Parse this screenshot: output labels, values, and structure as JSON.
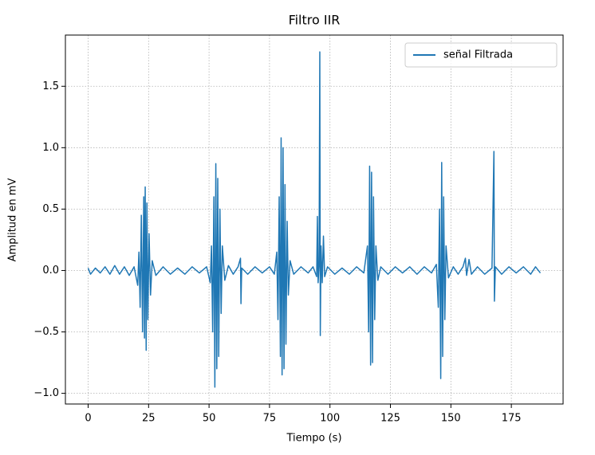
{
  "chart_data": {
    "type": "line",
    "title": "Filtro IIR",
    "xlabel": "Tiempo (s)",
    "ylabel": "Amplitud en mV",
    "xlim": [
      -9.4,
      196.4
    ],
    "ylim": [
      -1.087,
      1.917
    ],
    "xticks": [
      0,
      25,
      50,
      75,
      100,
      125,
      150,
      175
    ],
    "yticks": [
      {
        "value": -1.0,
        "label": "−1.0"
      },
      {
        "value": -0.5,
        "label": "−0.5"
      },
      {
        "value": 0.0,
        "label": "0.0"
      },
      0.5,
      {
        "value": 1.0,
        "label": "1.0"
      },
      1.5
    ],
    "grid": true,
    "legend": "upper right",
    "series": [
      {
        "name": "señal Filtrada",
        "color": "#1f77b4",
        "x": [
          0,
          1,
          3,
          5,
          7,
          9,
          11,
          13,
          15,
          17,
          19,
          20.5,
          21,
          21.5,
          22,
          22.5,
          23,
          23.3,
          23.6,
          24,
          24.3,
          24.7,
          25.2,
          25.8,
          26.5,
          28,
          31,
          34,
          37,
          40,
          43,
          46,
          49,
          50.5,
          51,
          51.5,
          52,
          52.4,
          52.8,
          53.2,
          53.6,
          54,
          54.5,
          55,
          55.5,
          56.5,
          58,
          60,
          62,
          63,
          63.2,
          63.5,
          66,
          69,
          72,
          75,
          77,
          78,
          78.5,
          79,
          79.5,
          79.8,
          80.2,
          80.6,
          81,
          81.4,
          81.8,
          82.3,
          82.8,
          83.5,
          85,
          88,
          91,
          93,
          94.5,
          94.8,
          95.1,
          95.5,
          95.8,
          96,
          96.3,
          96.8,
          97.3,
          97.8,
          99,
          102,
          105,
          108,
          111,
          114,
          115.5,
          116,
          116.4,
          116.8,
          117.2,
          117.6,
          118,
          118.5,
          119,
          119.8,
          121,
          124,
          127,
          130,
          133,
          136,
          139,
          142,
          144,
          144.8,
          145.3,
          145.8,
          146.2,
          146.6,
          147,
          147.5,
          148,
          149,
          151,
          153,
          155,
          156,
          156.5,
          157.5,
          158.5,
          161,
          164,
          167,
          167.8,
          168,
          168.4,
          171,
          174,
          177,
          180,
          183,
          185,
          187
        ],
        "values": [
          0.02,
          -0.03,
          0.02,
          -0.02,
          0.03,
          -0.03,
          0.04,
          -0.03,
          0.03,
          -0.04,
          0.03,
          -0.12,
          0.15,
          -0.3,
          0.45,
          -0.5,
          0.6,
          -0.55,
          0.68,
          -0.65,
          0.55,
          -0.4,
          0.3,
          -0.2,
          0.08,
          -0.04,
          0.03,
          -0.03,
          0.02,
          -0.03,
          0.03,
          -0.02,
          0.03,
          -0.1,
          0.2,
          -0.5,
          0.6,
          -0.95,
          0.87,
          -0.8,
          0.75,
          -0.7,
          0.5,
          -0.35,
          0.2,
          -0.08,
          0.04,
          -0.03,
          0.03,
          0.1,
          -0.27,
          0.02,
          -0.03,
          0.03,
          -0.02,
          0.03,
          -0.03,
          0.15,
          -0.4,
          0.6,
          -0.7,
          1.08,
          -0.85,
          1.0,
          -0.8,
          0.7,
          -0.6,
          0.4,
          -0.2,
          0.08,
          -0.03,
          0.03,
          -0.02,
          0.03,
          -0.05,
          0.44,
          -0.1,
          0.05,
          1.78,
          -0.53,
          0.2,
          -0.1,
          0.28,
          -0.05,
          0.03,
          -0.03,
          0.02,
          -0.03,
          0.03,
          -0.02,
          0.2,
          -0.5,
          0.85,
          -0.77,
          0.8,
          -0.75,
          0.6,
          -0.4,
          0.2,
          -0.08,
          0.03,
          -0.03,
          0.03,
          -0.02,
          0.03,
          -0.03,
          0.03,
          -0.02,
          0.05,
          -0.3,
          0.5,
          -0.88,
          0.88,
          -0.7,
          0.6,
          -0.4,
          0.2,
          -0.06,
          0.03,
          -0.03,
          0.03,
          0.1,
          -0.04,
          0.09,
          -0.03,
          0.03,
          -0.03,
          0.02,
          0.97,
          -0.25,
          0.03,
          -0.03,
          0.03,
          -0.02,
          0.03,
          -0.03,
          0.03,
          -0.02
        ]
      }
    ]
  }
}
